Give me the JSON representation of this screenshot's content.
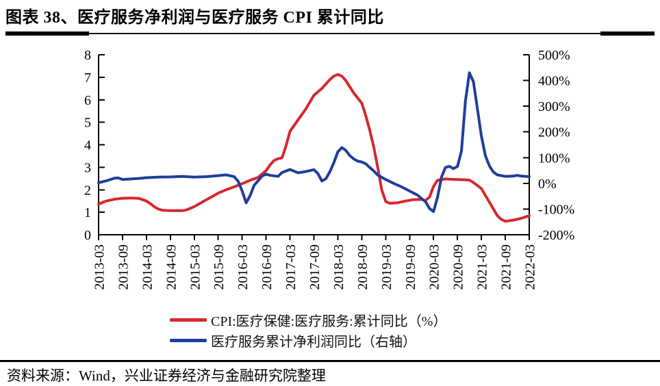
{
  "header": {
    "title": "图表 38、医疗服务净利润与医疗服务 CPI 累计同比"
  },
  "source": {
    "text": "资料来源：Wind，兴业证券经济与金融研究院整理"
  },
  "chart_data": {
    "type": "line",
    "title": "医疗服务净利润与医疗服务CPI累计同比",
    "grid": false,
    "legend_position": "bottom",
    "x_tick_labels": [
      "2013-03",
      "2013-09",
      "2014-03",
      "2014-09",
      "2015-03",
      "2015-09",
      "2016-03",
      "2016-09",
      "2017-03",
      "2017-09",
      "2018-03",
      "2018-09",
      "2019-03",
      "2019-09",
      "2020-03",
      "2020-09",
      "2021-03",
      "2021-09",
      "2022-03"
    ],
    "left_axis": {
      "min": 0,
      "max": 8,
      "ticks": [
        "8",
        "7",
        "6",
        "5",
        "4",
        "3",
        "2",
        "1",
        "0"
      ]
    },
    "right_axis": {
      "min": -200,
      "max": 500,
      "ticks": [
        "500%",
        "400%",
        "300%",
        "200%",
        "100%",
        "0%",
        "-100%",
        "-200%"
      ]
    },
    "series": [
      {
        "legend": "CPI:医疗保健:医疗服务:累计同比（%）",
        "axis": "left",
        "color": "#d7282d",
        "points": [
          [
            "2013-03",
            1.35
          ],
          [
            "2013-04",
            1.44
          ],
          [
            "2013-05",
            1.5
          ],
          [
            "2013-07",
            1.58
          ],
          [
            "2013-09",
            1.62
          ],
          [
            "2013-11",
            1.63
          ],
          [
            "2014-01",
            1.62
          ],
          [
            "2014-03",
            1.5
          ],
          [
            "2014-04",
            1.38
          ],
          [
            "2014-05",
            1.24
          ],
          [
            "2014-06",
            1.14
          ],
          [
            "2014-07",
            1.09
          ],
          [
            "2014-09",
            1.07
          ],
          [
            "2014-12",
            1.07
          ],
          [
            "2015-01",
            1.1
          ],
          [
            "2015-03",
            1.25
          ],
          [
            "2015-05",
            1.45
          ],
          [
            "2015-07",
            1.65
          ],
          [
            "2015-09",
            1.85
          ],
          [
            "2015-11",
            2.0
          ],
          [
            "2016-01",
            2.13
          ],
          [
            "2016-03",
            2.27
          ],
          [
            "2016-05",
            2.42
          ],
          [
            "2016-07",
            2.55
          ],
          [
            "2016-09",
            2.85
          ],
          [
            "2016-10",
            3.1
          ],
          [
            "2016-11",
            3.3
          ],
          [
            "2016-12",
            3.38
          ],
          [
            "2017-01",
            3.42
          ],
          [
            "2017-02",
            3.95
          ],
          [
            "2017-03",
            4.6
          ],
          [
            "2017-05",
            5.1
          ],
          [
            "2017-07",
            5.6
          ],
          [
            "2017-09",
            6.2
          ],
          [
            "2017-11",
            6.5
          ],
          [
            "2018-01",
            6.9
          ],
          [
            "2018-02",
            7.05
          ],
          [
            "2018-03",
            7.12
          ],
          [
            "2018-04",
            7.05
          ],
          [
            "2018-05",
            6.85
          ],
          [
            "2018-07",
            6.3
          ],
          [
            "2018-09",
            5.85
          ],
          [
            "2018-10",
            5.3
          ],
          [
            "2018-11",
            4.65
          ],
          [
            "2018-12",
            3.9
          ],
          [
            "2019-01",
            3.0
          ],
          [
            "2019-02",
            2.0
          ],
          [
            "2019-03",
            1.48
          ],
          [
            "2019-04",
            1.4
          ],
          [
            "2019-06",
            1.42
          ],
          [
            "2019-08",
            1.5
          ],
          [
            "2019-10",
            1.56
          ],
          [
            "2019-12",
            1.57
          ],
          [
            "2020-01",
            1.52
          ],
          [
            "2020-02",
            1.68
          ],
          [
            "2020-03",
            2.15
          ],
          [
            "2020-04",
            2.42
          ],
          [
            "2020-06",
            2.48
          ],
          [
            "2020-08",
            2.46
          ],
          [
            "2020-10",
            2.45
          ],
          [
            "2020-12",
            2.43
          ],
          [
            "2021-01",
            2.32
          ],
          [
            "2021-03",
            2.05
          ],
          [
            "2021-04",
            1.75
          ],
          [
            "2021-05",
            1.45
          ],
          [
            "2021-06",
            1.15
          ],
          [
            "2021-07",
            0.85
          ],
          [
            "2021-08",
            0.68
          ],
          [
            "2021-09",
            0.6
          ],
          [
            "2021-11",
            0.65
          ],
          [
            "2022-01",
            0.73
          ],
          [
            "2022-03",
            0.85
          ]
        ]
      },
      {
        "legend": "医疗服务累计净利润同比（右轴）",
        "axis": "right",
        "color": "#1f3e9b",
        "points": [
          [
            "2013-03",
            2
          ],
          [
            "2013-05",
            10
          ],
          [
            "2013-07",
            20
          ],
          [
            "2013-08",
            21
          ],
          [
            "2013-09",
            15
          ],
          [
            "2013-11",
            17
          ],
          [
            "2014-01",
            19
          ],
          [
            "2014-03",
            22
          ],
          [
            "2014-06",
            24
          ],
          [
            "2014-09",
            25
          ],
          [
            "2014-12",
            27
          ],
          [
            "2015-03",
            24
          ],
          [
            "2015-06",
            26
          ],
          [
            "2015-09",
            30
          ],
          [
            "2015-11",
            33
          ],
          [
            "2016-01",
            26
          ],
          [
            "2016-02",
            8
          ],
          [
            "2016-03",
            -30
          ],
          [
            "2016-04",
            -76
          ],
          [
            "2016-05",
            -48
          ],
          [
            "2016-06",
            -8
          ],
          [
            "2016-07",
            10
          ],
          [
            "2016-08",
            28
          ],
          [
            "2016-09",
            36
          ],
          [
            "2016-10",
            31
          ],
          [
            "2016-12",
            27
          ],
          [
            "2017-01",
            42
          ],
          [
            "2017-03",
            54
          ],
          [
            "2017-05",
            41
          ],
          [
            "2017-07",
            46
          ],
          [
            "2017-09",
            53
          ],
          [
            "2017-10",
            38
          ],
          [
            "2017-11",
            9
          ],
          [
            "2017-12",
            18
          ],
          [
            "2018-01",
            45
          ],
          [
            "2018-02",
            80
          ],
          [
            "2018-03",
            122
          ],
          [
            "2018-04",
            139
          ],
          [
            "2018-05",
            128
          ],
          [
            "2018-06",
            108
          ],
          [
            "2018-07",
            95
          ],
          [
            "2018-08",
            86
          ],
          [
            "2018-09",
            83
          ],
          [
            "2018-10",
            76
          ],
          [
            "2018-11",
            62
          ],
          [
            "2018-12",
            48
          ],
          [
            "2019-01",
            32
          ],
          [
            "2019-03",
            15
          ],
          [
            "2019-05",
            0
          ],
          [
            "2019-07",
            -14
          ],
          [
            "2019-09",
            -30
          ],
          [
            "2019-11",
            -46
          ],
          [
            "2020-01",
            -72
          ],
          [
            "2020-02",
            -98
          ],
          [
            "2020-03",
            -110
          ],
          [
            "2020-04",
            -55
          ],
          [
            "2020-05",
            25
          ],
          [
            "2020-06",
            62
          ],
          [
            "2020-07",
            66
          ],
          [
            "2020-08",
            57
          ],
          [
            "2020-09",
            66
          ],
          [
            "2020-10",
            125
          ],
          [
            "2020-11",
            320
          ],
          [
            "2020-12",
            430
          ],
          [
            "2021-01",
            395
          ],
          [
            "2021-02",
            290
          ],
          [
            "2021-03",
            184
          ],
          [
            "2021-04",
            108
          ],
          [
            "2021-05",
            68
          ],
          [
            "2021-06",
            44
          ],
          [
            "2021-07",
            33
          ],
          [
            "2021-09",
            27
          ],
          [
            "2021-11",
            28
          ],
          [
            "2021-12",
            31
          ],
          [
            "2022-01",
            28
          ],
          [
            "2022-03",
            26
          ]
        ]
      }
    ]
  }
}
